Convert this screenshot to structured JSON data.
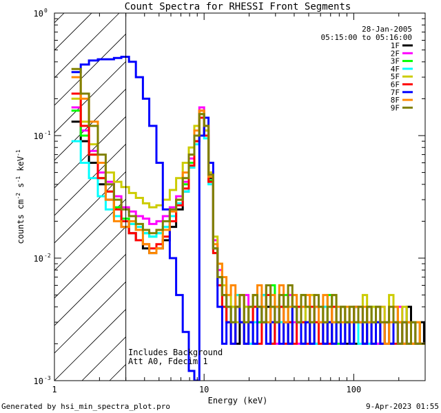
{
  "chart_data": {
    "type": "line",
    "title": "Count Spectra for RHESSI Front Segments",
    "xlabel": "Energy (keV)",
    "ylabel_parts": {
      "a": "counts cm",
      "b": "-2",
      "c": " s",
      "d": "-1",
      "e": " keV",
      "f": "-1"
    },
    "x_scale": "log",
    "y_scale": "log",
    "xlim": [
      1,
      300
    ],
    "ylim": [
      0.001,
      1
    ],
    "x_ticks": [
      {
        "v": 1,
        "label": "1"
      },
      {
        "v": 10,
        "label": "10"
      },
      {
        "v": 100,
        "label": "100"
      }
    ],
    "y_ticks": [
      {
        "v": 0.001,
        "base": "10",
        "exp": "-3"
      },
      {
        "v": 0.01,
        "base": "10",
        "exp": "-2"
      },
      {
        "v": 0.1,
        "base": "10",
        "exp": "-1"
      },
      {
        "v": 1,
        "base": "10",
        "exp": "0"
      }
    ],
    "date": "28-Jan-2005",
    "time_range": "05:15:00 to 05:16:00",
    "hatched_region_upper_keV": 3,
    "annotation_lines": [
      "Includes Background",
      "Att A0, Fdecim 1"
    ],
    "footer_left": "Generated by hsi_min_spectra_plot.pro",
    "footer_right": "9-Apr-2023 01:55",
    "lower_energy_edges": [
      1.3,
      1.5,
      1.7,
      1.95,
      2.2,
      2.5,
      2.8,
      3.15,
      3.5,
      3.9,
      4.3,
      4.8,
      5.3,
      5.9,
      6.5,
      7.2,
      7.9,
      8.6,
      9.3,
      10.0,
      10.7,
      11.5,
      12.3,
      13.2,
      14.1,
      15.1,
      16.2,
      17.3,
      18.5,
      19.8,
      21.2,
      22.7,
      24.3,
      26.0,
      27.8,
      29.7,
      31.8,
      34.0,
      36.4,
      38.9,
      41.6,
      44.5,
      47.6,
      50.9,
      54.5,
      58.3,
      62.4,
      66.8,
      71.5,
      76.5,
      81.9,
      87.6,
      93.7,
      100.3,
      107.3,
      114.8,
      122.8,
      131.4,
      140.6,
      150.4,
      160.9,
      172.2,
      184.2,
      197.1,
      210.9,
      225.7,
      241.5,
      258.4,
      276.4,
      295.0
    ],
    "series": [
      {
        "name": "1F",
        "color": "#000000",
        "values": [
          0.13,
          0.09,
          0.06,
          0.04,
          0.03,
          0.022,
          0.018,
          0.016,
          0.014,
          0.012,
          0.011,
          0.012,
          0.014,
          0.018,
          0.025,
          0.035,
          0.055,
          0.09,
          0.16,
          0.11,
          0.045,
          0.012,
          0.007,
          0.005,
          0.003,
          0.004,
          0.002,
          0.003,
          0.004,
          0.003,
          0.002,
          0.003,
          0.005,
          0.004,
          0.002,
          0.003,
          0.004,
          0.003,
          0.002,
          0.004,
          0.003,
          0.002,
          0.003,
          0.002,
          0.004,
          0.003,
          0.002,
          0.003,
          0.002,
          0.003,
          0.004,
          0.002,
          0.003,
          0.002,
          0.003,
          0.002,
          0.004,
          0.003,
          0.002,
          0.003,
          0.002,
          0.002,
          0.003,
          0.002,
          0.003,
          0.004,
          0.003,
          0.002,
          0.003,
          0.002
        ]
      },
      {
        "name": "2F",
        "color": "#ff00ff",
        "values": [
          0.17,
          0.11,
          0.075,
          0.05,
          0.042,
          0.032,
          0.026,
          0.024,
          0.022,
          0.021,
          0.019,
          0.02,
          0.022,
          0.026,
          0.032,
          0.042,
          0.065,
          0.1,
          0.17,
          0.12,
          0.05,
          0.014,
          0.008,
          0.005,
          0.004,
          0.003,
          0.004,
          0.003,
          0.005,
          0.002,
          0.004,
          0.003,
          0.004,
          0.006,
          0.003,
          0.002,
          0.004,
          0.003,
          0.005,
          0.003,
          0.002,
          0.004,
          0.003,
          0.005,
          0.002,
          0.003,
          0.004,
          0.003,
          0.002,
          0.003,
          0.004,
          0.003,
          0.002,
          0.003,
          0.004,
          0.003,
          0.002,
          0.003,
          0.002,
          0.004,
          0.003,
          0.002,
          0.003,
          0.004,
          0.002,
          0.003,
          0.002,
          0.003,
          0.002,
          0.002
        ]
      },
      {
        "name": "3F",
        "color": "#00ff00",
        "values": [
          0.16,
          0.1,
          0.07,
          0.045,
          0.035,
          0.026,
          0.021,
          0.019,
          0.017,
          0.016,
          0.015,
          0.016,
          0.018,
          0.022,
          0.03,
          0.04,
          0.06,
          0.09,
          0.15,
          0.1,
          0.043,
          0.011,
          0.006,
          0.004,
          0.003,
          0.004,
          0.005,
          0.003,
          0.002,
          0.004,
          0.005,
          0.003,
          0.004,
          0.003,
          0.006,
          0.004,
          0.003,
          0.005,
          0.002,
          0.004,
          0.003,
          0.005,
          0.004,
          0.003,
          0.002,
          0.004,
          0.003,
          0.005,
          0.003,
          0.002,
          0.004,
          0.003,
          0.002,
          0.004,
          0.003,
          0.002,
          0.003,
          0.004,
          0.003,
          0.002,
          0.003,
          0.002,
          0.004,
          0.003,
          0.002,
          0.003,
          0.002,
          0.003,
          0.002,
          0.002
        ]
      },
      {
        "name": "4F",
        "color": "#00ffff",
        "values": [
          0.09,
          0.06,
          0.045,
          0.032,
          0.025,
          0.022,
          0.02,
          0.019,
          0.018,
          0.016,
          0.015,
          0.016,
          0.018,
          0.022,
          0.028,
          0.035,
          0.055,
          0.085,
          0.14,
          0.095,
          0.04,
          0.012,
          0.007,
          0.006,
          0.004,
          0.003,
          0.005,
          0.003,
          0.004,
          0.002,
          0.003,
          0.004,
          0.005,
          0.003,
          0.002,
          0.004,
          0.003,
          0.002,
          0.004,
          0.005,
          0.003,
          0.002,
          0.004,
          0.003,
          0.002,
          0.003,
          0.004,
          0.002,
          0.003,
          0.004,
          0.002,
          0.003,
          0.002,
          0.004,
          0.002,
          0.003,
          0.002,
          0.003,
          0.004,
          0.002,
          0.003,
          0.002,
          0.003,
          0.002,
          0.003,
          0.002,
          0.003,
          0.002,
          0.002,
          0.002
        ]
      },
      {
        "name": "5F",
        "color": "#cccc00",
        "values": [
          0.2,
          0.13,
          0.085,
          0.06,
          0.05,
          0.042,
          0.038,
          0.034,
          0.031,
          0.028,
          0.026,
          0.027,
          0.03,
          0.036,
          0.045,
          0.06,
          0.08,
          0.12,
          0.16,
          0.11,
          0.05,
          0.015,
          0.009,
          0.006,
          0.005,
          0.004,
          0.003,
          0.005,
          0.004,
          0.003,
          0.005,
          0.004,
          0.003,
          0.006,
          0.004,
          0.003,
          0.005,
          0.004,
          0.003,
          0.005,
          0.004,
          0.003,
          0.004,
          0.005,
          0.003,
          0.004,
          0.003,
          0.004,
          0.005,
          0.003,
          0.004,
          0.003,
          0.004,
          0.003,
          0.004,
          0.005,
          0.003,
          0.004,
          0.003,
          0.004,
          0.003,
          0.005,
          0.004,
          0.003,
          0.004,
          0.003,
          0.002,
          0.003,
          0.002,
          0.002
        ]
      },
      {
        "name": "6F",
        "color": "#ff0000",
        "values": [
          0.22,
          0.12,
          0.07,
          0.045,
          0.035,
          0.025,
          0.02,
          0.016,
          0.014,
          0.013,
          0.012,
          0.013,
          0.015,
          0.02,
          0.027,
          0.037,
          0.057,
          0.09,
          0.14,
          0.1,
          0.042,
          0.011,
          0.006,
          0.004,
          0.003,
          0.002,
          0.004,
          0.003,
          0.002,
          0.003,
          0.004,
          0.002,
          0.003,
          0.005,
          0.002,
          0.003,
          0.004,
          0.002,
          0.003,
          0.002,
          0.004,
          0.003,
          0.002,
          0.004,
          0.003,
          0.002,
          0.003,
          0.002,
          0.004,
          0.003,
          0.002,
          0.003,
          0.002,
          0.004,
          0.003,
          0.002,
          0.003,
          0.002,
          0.003,
          0.002,
          0.003,
          0.002,
          0.002,
          0.003,
          0.002,
          0.003,
          0.002,
          0.002,
          0.002,
          0.002
        ]
      },
      {
        "name": "7F",
        "color": "#0000ff",
        "values": [
          0.33,
          0.38,
          0.41,
          0.42,
          0.42,
          0.43,
          0.44,
          0.4,
          0.3,
          0.2,
          0.12,
          0.06,
          0.025,
          0.01,
          0.005,
          0.0025,
          0.0012,
          0.001,
          0.1,
          0.14,
          0.06,
          0.012,
          0.004,
          0.002,
          0.003,
          0.002,
          0.004,
          0.003,
          0.002,
          0.003,
          0.002,
          0.004,
          0.003,
          0.002,
          0.003,
          0.004,
          0.002,
          0.003,
          0.002,
          0.004,
          0.003,
          0.002,
          0.003,
          0.002,
          0.004,
          0.003,
          0.002,
          0.003,
          0.002,
          0.003,
          0.002,
          0.003,
          0.002,
          0.004,
          0.003,
          0.002,
          0.003,
          0.002,
          0.003,
          0.002,
          0.003,
          0.002,
          0.003,
          0.002,
          0.003,
          0.002,
          0.003,
          0.002,
          0.002,
          0.002
        ]
      },
      {
        "name": "8F",
        "color": "#ff8800",
        "values": [
          0.3,
          0.2,
          0.13,
          0.06,
          0.03,
          0.02,
          0.018,
          0.02,
          0.017,
          0.013,
          0.011,
          0.012,
          0.017,
          0.024,
          0.03,
          0.05,
          0.07,
          0.11,
          0.16,
          0.12,
          0.046,
          0.013,
          0.009,
          0.007,
          0.005,
          0.006,
          0.004,
          0.005,
          0.003,
          0.004,
          0.005,
          0.006,
          0.004,
          0.003,
          0.005,
          0.004,
          0.006,
          0.003,
          0.004,
          0.005,
          0.003,
          0.004,
          0.005,
          0.003,
          0.004,
          0.003,
          0.005,
          0.004,
          0.003,
          0.004,
          0.003,
          0.004,
          0.003,
          0.004,
          0.003,
          0.004,
          0.003,
          0.003,
          0.004,
          0.003,
          0.002,
          0.003,
          0.004,
          0.003,
          0.002,
          0.003,
          0.002,
          0.003,
          0.002,
          0.002
        ]
      },
      {
        "name": "9F",
        "color": "#808000",
        "values": [
          0.35,
          0.22,
          0.12,
          0.07,
          0.04,
          0.03,
          0.025,
          0.022,
          0.019,
          0.017,
          0.016,
          0.017,
          0.02,
          0.025,
          0.03,
          0.045,
          0.07,
          0.1,
          0.15,
          0.12,
          0.048,
          0.012,
          0.007,
          0.005,
          0.004,
          0.003,
          0.004,
          0.005,
          0.003,
          0.004,
          0.005,
          0.004,
          0.003,
          0.006,
          0.004,
          0.003,
          0.005,
          0.004,
          0.006,
          0.004,
          0.003,
          0.005,
          0.004,
          0.003,
          0.005,
          0.004,
          0.003,
          0.004,
          0.005,
          0.003,
          0.004,
          0.003,
          0.004,
          0.003,
          0.004,
          0.003,
          0.004,
          0.003,
          0.004,
          0.003,
          0.003,
          0.004,
          0.003,
          0.002,
          0.003,
          0.002,
          0.003,
          0.002,
          0.002,
          0.002
        ]
      }
    ]
  }
}
